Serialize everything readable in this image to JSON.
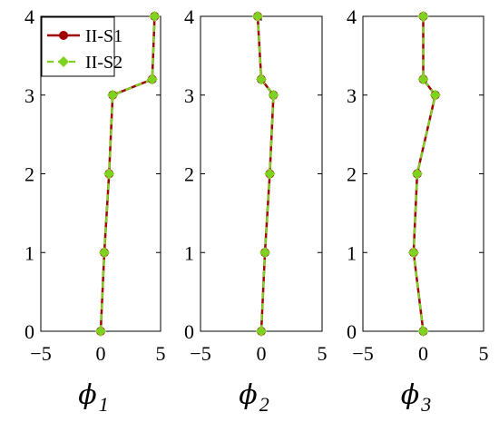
{
  "chart_data": [
    {
      "type": "line",
      "y": [
        0,
        1,
        2,
        3,
        3.2,
        4
      ],
      "series": [
        {
          "name": "II-S1",
          "x": [
            0,
            0.3,
            0.7,
            1.0,
            4.3,
            4.5
          ],
          "color": "#a00000",
          "marker": "circle"
        },
        {
          "name": "II-S2",
          "x": [
            0,
            0.3,
            0.7,
            1.0,
            4.3,
            4.5
          ],
          "color": "#7ed321",
          "marker": "diamond"
        }
      ],
      "xlim": [
        -5,
        5
      ],
      "ylim": [
        0,
        4
      ],
      "xticks": [
        -5,
        0,
        5
      ],
      "yticks": [
        0,
        1,
        2,
        3,
        4
      ],
      "xlabel": {
        "symbol": "ϕ",
        "sub": "1"
      },
      "legend": {
        "position": "top-left",
        "entries": [
          "II-S1",
          "II-S2"
        ]
      }
    },
    {
      "type": "line",
      "y": [
        0,
        1,
        2,
        3,
        3.2,
        4
      ],
      "series": [
        {
          "name": "II-S1",
          "x": [
            0,
            0.3,
            0.7,
            1.0,
            0,
            -0.3
          ],
          "color": "#a00000",
          "marker": "circle"
        },
        {
          "name": "II-S2",
          "x": [
            0,
            0.3,
            0.7,
            1.0,
            0,
            -0.3
          ],
          "color": "#7ed321",
          "marker": "diamond"
        }
      ],
      "xlim": [
        -5,
        5
      ],
      "ylim": [
        0,
        4
      ],
      "xticks": [
        -5,
        0,
        5
      ],
      "yticks": [
        0,
        1,
        2,
        3,
        4
      ],
      "xlabel": {
        "symbol": "ϕ",
        "sub": "2"
      }
    },
    {
      "type": "line",
      "y": [
        0,
        1,
        2,
        3,
        3.2,
        4
      ],
      "series": [
        {
          "name": "II-S1",
          "x": [
            0,
            -0.8,
            -0.5,
            1.0,
            0,
            0
          ],
          "color": "#a00000",
          "marker": "circle"
        },
        {
          "name": "II-S2",
          "x": [
            0,
            -0.8,
            -0.5,
            1.0,
            0,
            0
          ],
          "color": "#7ed321",
          "marker": "diamond"
        }
      ],
      "xlim": [
        -5,
        5
      ],
      "ylim": [
        0,
        4
      ],
      "xticks": [
        -5,
        0,
        5
      ],
      "yticks": [
        0,
        1,
        2,
        3,
        4
      ],
      "xlabel": {
        "symbol": "ϕ",
        "sub": "3"
      }
    }
  ]
}
